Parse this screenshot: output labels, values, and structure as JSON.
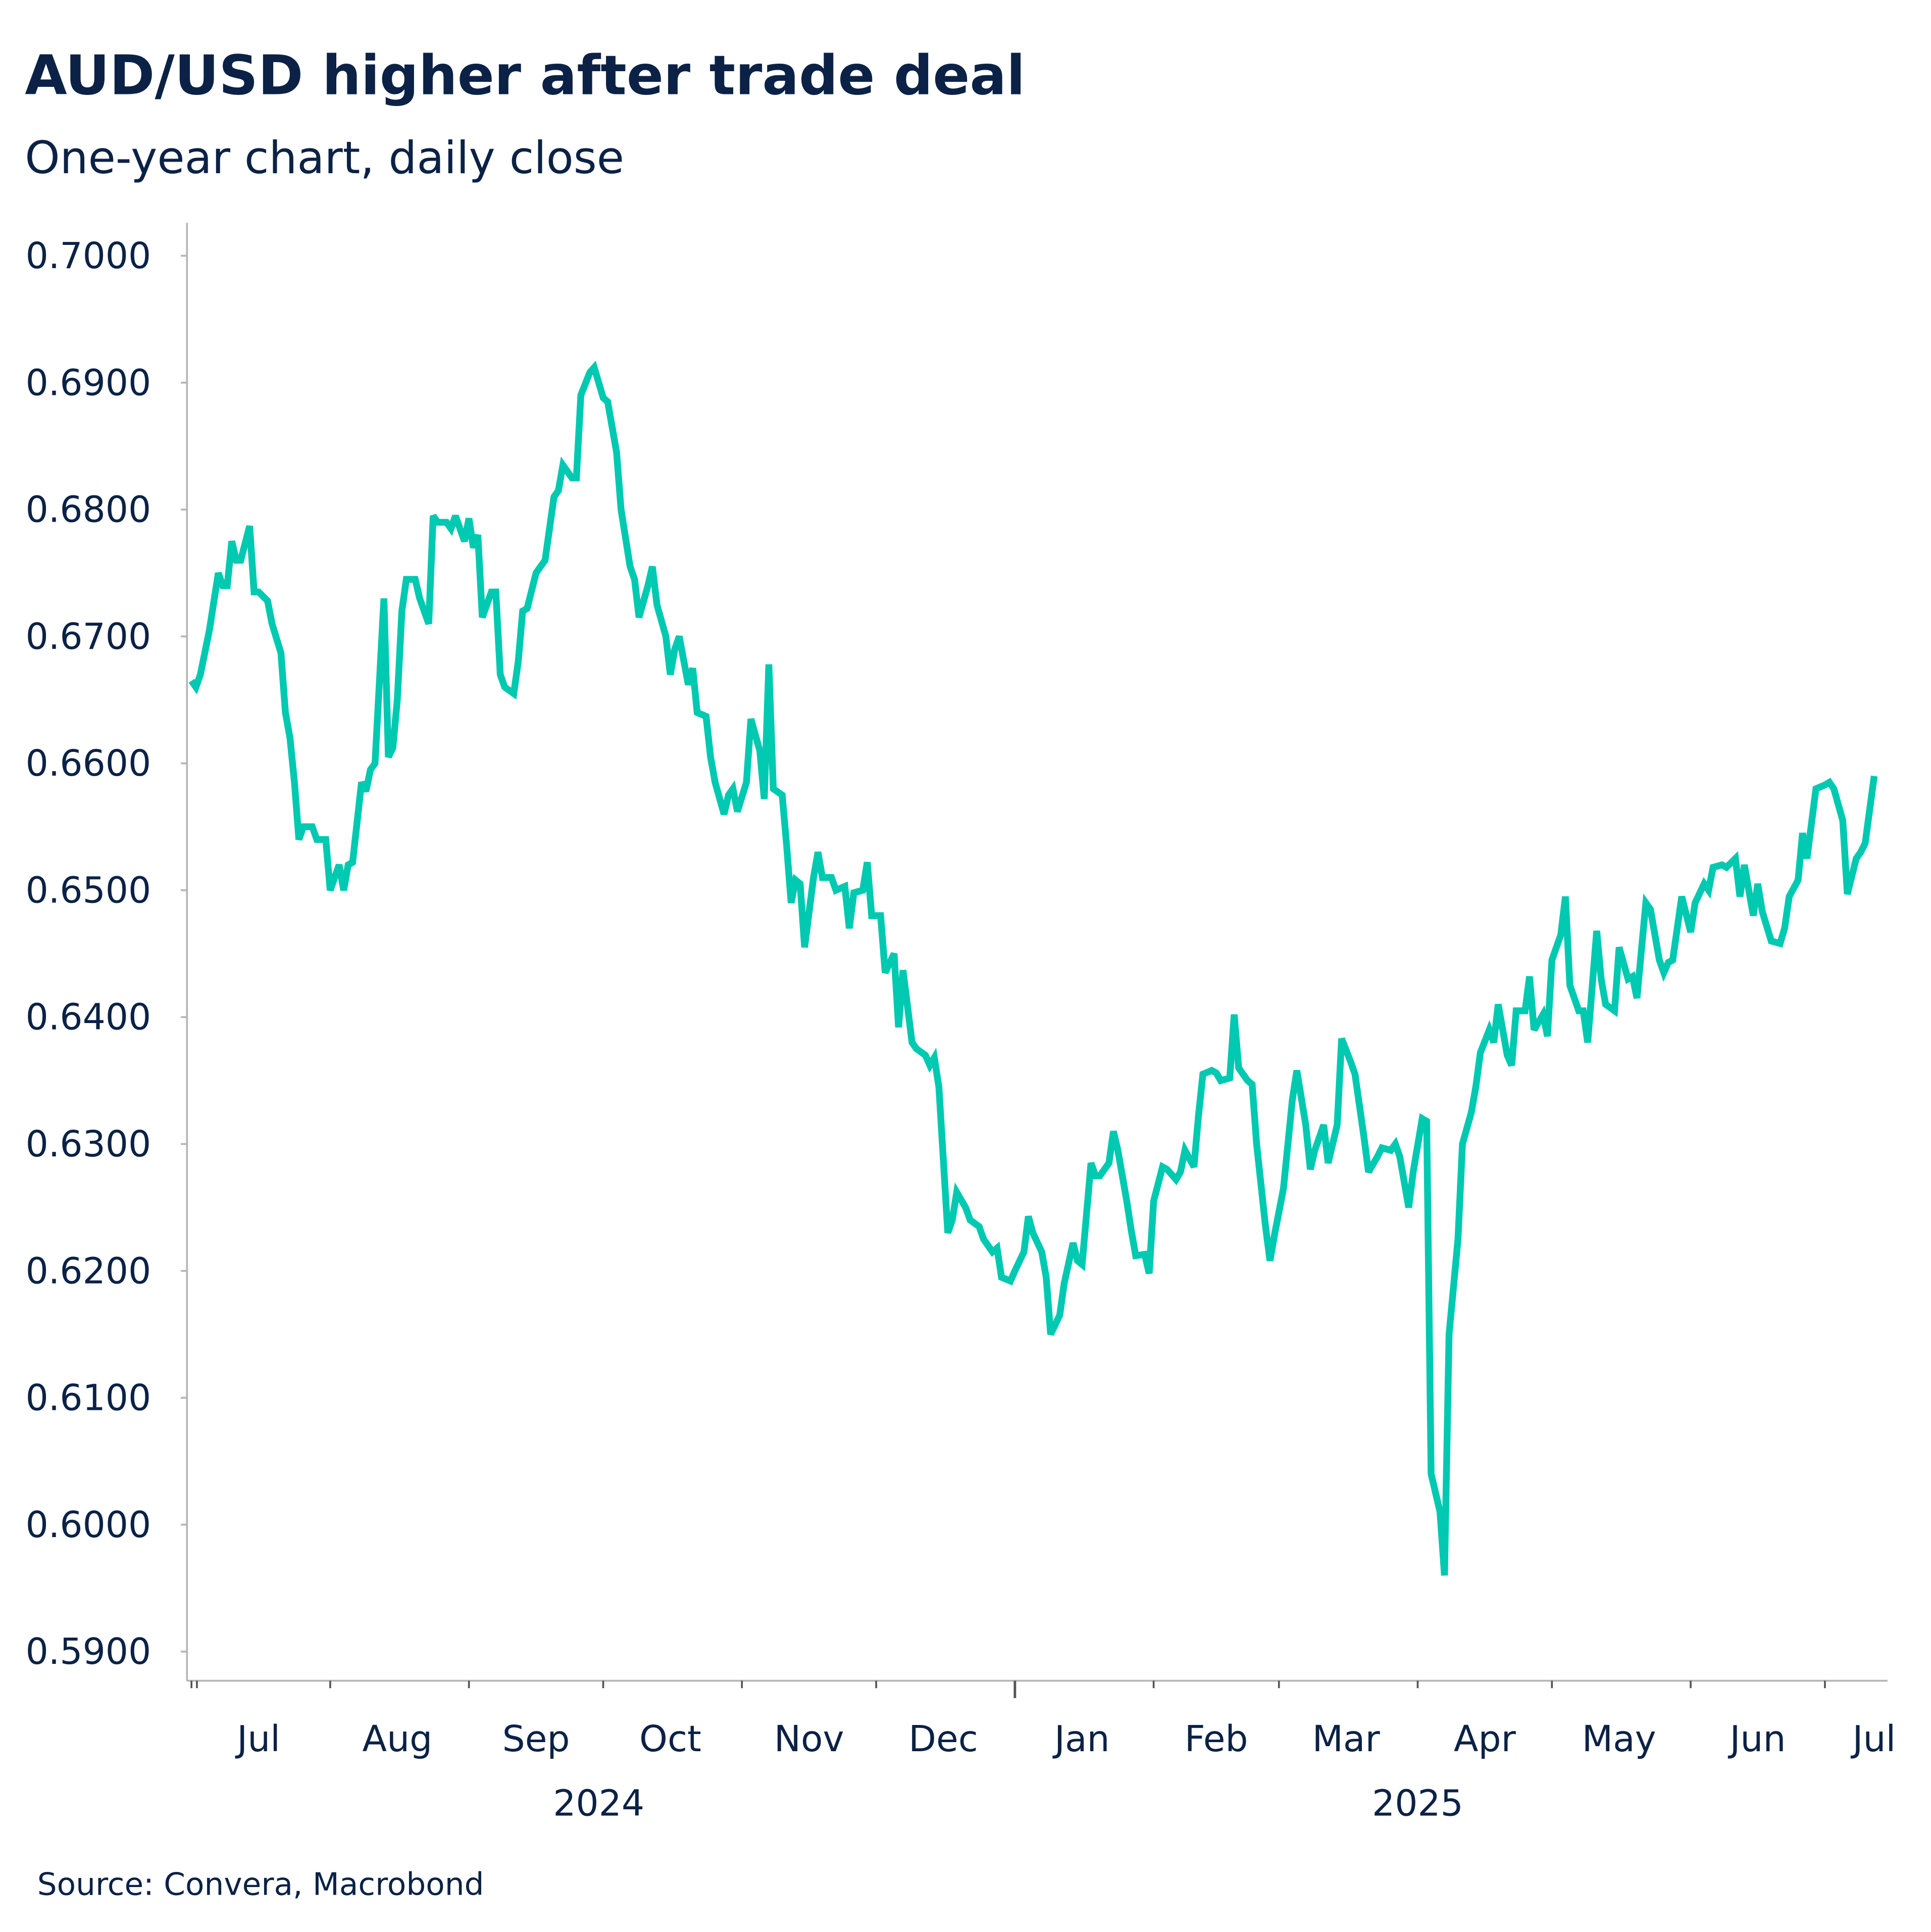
{
  "title": "AUD/USD higher after trade deal",
  "subtitle": "One-year chart, daily close",
  "source": "Source: Convera, Macrobond",
  "chart_data": {
    "type": "line",
    "title": "AUD/USD higher after trade deal",
    "subtitle": "One-year chart, daily close",
    "xlabel": "",
    "ylabel": "",
    "ylim": [
      0.5877,
      0.7026
    ],
    "xlim": [
      "2024-06-30",
      "2025-07-15"
    ],
    "grid": false,
    "line_color": "#00C9B1",
    "y_ticks": [
      "0.5900",
      "0.6000",
      "0.6100",
      "0.6200",
      "0.6300",
      "0.6400",
      "0.6500",
      "0.6600",
      "0.6700",
      "0.6800",
      "0.6900",
      "0.7000"
    ],
    "x_month_labels": [
      {
        "label": "Jul",
        "date": "2024-07-16"
      },
      {
        "label": "Aug",
        "date": "2024-08-16"
      },
      {
        "label": "Sep",
        "date": "2024-09-16"
      },
      {
        "label": "Oct",
        "date": "2024-10-16"
      },
      {
        "label": "Nov",
        "date": "2024-11-16"
      },
      {
        "label": "Dec",
        "date": "2024-12-16"
      },
      {
        "label": "Jan",
        "date": "2025-01-16"
      },
      {
        "label": "Feb",
        "date": "2025-02-15"
      },
      {
        "label": "Mar",
        "date": "2025-03-16"
      },
      {
        "label": "Apr",
        "date": "2025-04-16"
      },
      {
        "label": "May",
        "date": "2025-05-16"
      },
      {
        "label": "Jun",
        "date": "2025-06-16"
      },
      {
        "label": "Jul",
        "date": "2025-07-12"
      }
    ],
    "x_year_labels": [
      {
        "label": "2024",
        "date": "2024-09-30"
      },
      {
        "label": "2025",
        "date": "2025-04-01"
      }
    ],
    "x_ticks": [
      "2024-07-01",
      "2024-08-01",
      "2024-09-01",
      "2024-10-01",
      "2024-11-01",
      "2024-12-01",
      "2025-01-01",
      "2025-02-01",
      "2025-03-01",
      "2025-04-01",
      "2025-05-01",
      "2025-06-01",
      "2025-07-01"
    ],
    "series": [
      {
        "x": [
          "2024-07-01",
          "2024-07-02",
          "2024-07-03",
          "2024-07-05",
          "2024-07-07",
          "2024-07-08",
          "2024-07-09",
          "2024-07-10",
          "2024-07-11",
          "2024-07-12",
          "2024-07-14",
          "2024-07-15",
          "2024-07-16",
          "2024-07-18",
          "2024-07-19",
          "2024-07-21",
          "2024-07-22",
          "2024-07-23",
          "2024-07-24",
          "2024-07-25",
          "2024-07-26",
          "2024-07-28",
          "2024-07-29",
          "2024-07-30",
          "2024-07-31",
          "2024-08-01",
          "2024-08-03",
          "2024-08-04",
          "2024-08-05",
          "2024-08-06",
          "2024-08-08",
          "2024-08-09",
          "2024-08-10",
          "2024-08-11",
          "2024-08-13",
          "2024-08-14",
          "2024-08-15",
          "2024-08-16",
          "2024-08-17",
          "2024-08-18",
          "2024-08-20",
          "2024-08-21",
          "2024-08-23",
          "2024-08-24",
          "2024-08-25",
          "2024-08-27",
          "2024-08-28",
          "2024-08-29",
          "2024-08-31",
          "2024-09-01",
          "2024-09-02",
          "2024-09-03",
          "2024-09-04",
          "2024-09-06",
          "2024-09-07",
          "2024-09-08",
          "2024-09-09",
          "2024-09-11",
          "2024-09-12",
          "2024-09-13",
          "2024-09-14",
          "2024-09-16",
          "2024-09-17",
          "2024-09-18",
          "2024-09-20",
          "2024-09-21",
          "2024-09-22",
          "2024-09-24",
          "2024-09-25",
          "2024-09-26",
          "2024-09-28",
          "2024-09-29",
          "2024-10-01",
          "2024-10-02",
          "2024-10-04",
          "2024-10-05",
          "2024-10-07",
          "2024-10-08",
          "2024-10-09",
          "2024-10-11",
          "2024-10-12",
          "2024-10-13",
          "2024-10-15",
          "2024-10-16",
          "2024-10-17",
          "2024-10-18",
          "2024-10-20",
          "2024-10-21",
          "2024-10-22",
          "2024-10-24",
          "2024-10-25",
          "2024-10-26",
          "2024-10-28",
          "2024-10-29",
          "2024-10-30",
          "2024-10-31",
          "2024-11-02",
          "2024-11-03",
          "2024-11-05",
          "2024-11-06",
          "2024-11-07",
          "2024-11-08",
          "2024-11-10",
          "2024-11-11",
          "2024-11-12",
          "2024-11-13",
          "2024-11-14",
          "2024-11-15",
          "2024-11-17",
          "2024-11-18",
          "2024-11-19",
          "2024-11-21",
          "2024-11-22",
          "2024-11-24",
          "2024-11-25",
          "2024-11-26",
          "2024-11-28",
          "2024-11-29",
          "2024-11-30",
          "2024-12-02",
          "2024-12-03",
          "2024-12-05",
          "2024-12-06",
          "2024-12-07",
          "2024-12-09",
          "2024-12-10",
          "2024-12-12",
          "2024-12-13",
          "2024-12-14",
          "2024-12-15",
          "2024-12-17",
          "2024-12-18",
          "2024-12-19",
          "2024-12-21",
          "2024-12-22",
          "2024-12-24",
          "2024-12-25",
          "2024-12-27",
          "2024-12-28",
          "2024-12-29",
          "2024-12-31",
          "2025-01-01",
          "2025-01-03",
          "2025-01-04",
          "2025-01-05",
          "2025-01-07",
          "2025-01-08",
          "2025-01-09",
          "2025-01-11",
          "2025-01-12",
          "2025-01-14",
          "2025-01-15",
          "2025-01-16",
          "2025-01-18",
          "2025-01-19",
          "2025-01-20",
          "2025-01-22",
          "2025-01-23",
          "2025-01-24",
          "2025-01-26",
          "2025-01-27",
          "2025-01-28",
          "2025-01-30",
          "2025-01-31",
          "2025-02-01",
          "2025-02-03",
          "2025-02-04",
          "2025-02-06",
          "2025-02-07",
          "2025-02-08",
          "2025-02-10",
          "2025-02-11",
          "2025-02-12",
          "2025-02-14",
          "2025-02-15",
          "2025-02-16",
          "2025-02-18",
          "2025-02-19",
          "2025-02-20",
          "2025-02-22",
          "2025-02-23",
          "2025-02-24",
          "2025-02-26",
          "2025-02-27",
          "2025-02-28",
          "2025-03-02",
          "2025-03-04",
          "2025-03-05",
          "2025-03-07",
          "2025-03-08",
          "2025-03-09",
          "2025-03-11",
          "2025-03-12",
          "2025-03-14",
          "2025-03-15",
          "2025-03-17",
          "2025-03-18",
          "2025-03-20",
          "2025-03-21",
          "2025-03-23",
          "2025-03-24",
          "2025-03-26",
          "2025-03-27",
          "2025-03-28",
          "2025-03-30",
          "2025-03-31",
          "2025-04-02",
          "2025-04-03",
          "2025-04-04",
          "2025-04-06",
          "2025-04-07",
          "2025-04-08",
          "2025-04-10",
          "2025-04-11",
          "2025-04-13",
          "2025-04-14",
          "2025-04-15",
          "2025-04-17",
          "2025-04-18",
          "2025-04-19",
          "2025-04-21",
          "2025-04-22",
          "2025-04-23",
          "2025-04-25",
          "2025-04-26",
          "2025-04-27",
          "2025-04-29",
          "2025-04-30",
          "2025-05-01",
          "2025-05-03",
          "2025-05-04",
          "2025-05-05",
          "2025-05-07",
          "2025-05-08",
          "2025-05-09",
          "2025-05-11",
          "2025-05-12",
          "2025-05-13",
          "2025-05-15",
          "2025-05-16",
          "2025-05-18",
          "2025-05-19",
          "2025-05-20",
          "2025-05-22",
          "2025-05-23",
          "2025-05-25",
          "2025-05-26",
          "2025-05-27",
          "2025-05-28",
          "2025-05-30",
          "2025-06-01",
          "2025-06-02",
          "2025-06-04",
          "2025-06-05",
          "2025-06-06",
          "2025-06-08",
          "2025-06-09",
          "2025-06-11",
          "2025-06-12",
          "2025-06-13",
          "2025-06-15",
          "2025-06-16",
          "2025-06-17",
          "2025-06-19",
          "2025-06-21",
          "2025-06-22",
          "2025-06-23",
          "2025-06-25",
          "2025-06-26",
          "2025-06-27",
          "2025-06-29",
          "2025-07-01",
          "2025-07-02",
          "2025-07-03",
          "2025-07-05",
          "2025-07-06",
          "2025-07-08",
          "2025-07-09",
          "2025-07-10",
          "2025-07-12"
        ],
        "y": [
          0.6665,
          0.666,
          0.667,
          0.6705,
          0.675,
          0.674,
          0.674,
          0.6775,
          0.676,
          0.676,
          0.6787,
          0.6735,
          0.6735,
          0.6728,
          0.671,
          0.6687,
          0.664,
          0.662,
          0.6585,
          0.654,
          0.655,
          0.655,
          0.654,
          0.654,
          0.654,
          0.65,
          0.652,
          0.65,
          0.652,
          0.6522,
          0.6585,
          0.6578,
          0.6595,
          0.66,
          0.673,
          0.6605,
          0.6612,
          0.665,
          0.672,
          0.6745,
          0.6745,
          0.673,
          0.671,
          0.6795,
          0.679,
          0.679,
          0.6785,
          0.6795,
          0.6775,
          0.6793,
          0.677,
          0.678,
          0.6715,
          0.6735,
          0.6735,
          0.667,
          0.666,
          0.6655,
          0.668,
          0.672,
          0.6722,
          0.675,
          0.6755,
          0.676,
          0.681,
          0.6815,
          0.6835,
          0.6825,
          0.6825,
          0.689,
          0.6908,
          0.6912,
          0.6888,
          0.6885,
          0.6845,
          0.68,
          0.6755,
          0.6745,
          0.6715,
          0.674,
          0.6755,
          0.6725,
          0.67,
          0.667,
          0.669,
          0.67,
          0.6662,
          0.6675,
          0.664,
          0.6637,
          0.6605,
          0.6585,
          0.656,
          0.6575,
          0.658,
          0.6562,
          0.6585,
          0.6635,
          0.661,
          0.6572,
          0.6678,
          0.658,
          0.6575,
          0.6535,
          0.649,
          0.6508,
          0.6505,
          0.6455,
          0.651,
          0.653,
          0.651,
          0.651,
          0.65,
          0.6503,
          0.647,
          0.6498,
          0.65,
          0.6522,
          0.648,
          0.648,
          0.6435,
          0.645,
          0.6392,
          0.6437,
          0.638,
          0.6375,
          0.637,
          0.6362,
          0.6368,
          0.6345,
          0.623,
          0.624,
          0.6262,
          0.625,
          0.624,
          0.6235,
          0.6225,
          0.6215,
          0.6218,
          0.6195,
          0.6192,
          0.62,
          0.6215,
          0.6243,
          0.623,
          0.6215,
          0.6195,
          0.615,
          0.6165,
          0.619,
          0.6222,
          0.6208,
          0.6205,
          0.6285,
          0.6275,
          0.6275,
          0.6285,
          0.631,
          0.6295,
          0.6255,
          0.6232,
          0.6212,
          0.6213,
          0.6198,
          0.6255,
          0.6282,
          0.628,
          0.6272,
          0.6278,
          0.6295,
          0.6282,
          0.6322,
          0.6355,
          0.6358,
          0.6356,
          0.635,
          0.6352,
          0.6402,
          0.636,
          0.635,
          0.6347,
          0.63,
          0.6235,
          0.6208,
          0.6228,
          0.6265,
          0.6335,
          0.6358,
          0.6315,
          0.628,
          0.6295,
          0.6315,
          0.6285,
          0.6315,
          0.6383,
          0.6365,
          0.6355,
          0.6305,
          0.6278,
          0.629,
          0.6297,
          0.6295,
          0.63,
          0.629,
          0.625,
          0.6278,
          0.632,
          0.6318,
          0.604,
          0.601,
          0.596,
          0.615,
          0.6225,
          0.63,
          0.6325,
          0.6345,
          0.6372,
          0.639,
          0.638,
          0.641,
          0.637,
          0.6362,
          0.6405,
          0.6405,
          0.6432,
          0.639,
          0.6402,
          0.6385,
          0.6445,
          0.6465,
          0.6495,
          0.6425,
          0.6405,
          0.6405,
          0.638,
          0.6468,
          0.643,
          0.641,
          0.6405,
          0.6455,
          0.643,
          0.6432,
          0.6415,
          0.649,
          0.6485,
          0.6445,
          0.6435,
          0.6443,
          0.6445,
          0.6495,
          0.6467,
          0.649,
          0.6505,
          0.65,
          0.6518,
          0.652,
          0.6518,
          0.6525,
          0.6495,
          0.652,
          0.648,
          0.6505,
          0.6483,
          0.646,
          0.6458,
          0.647,
          0.6495,
          0.6508,
          0.6545,
          0.6525,
          0.658,
          0.6583,
          0.6585,
          0.658,
          0.6555,
          0.6497,
          0.6525,
          0.653,
          0.6537,
          0.659
        ]
      }
    ]
  }
}
